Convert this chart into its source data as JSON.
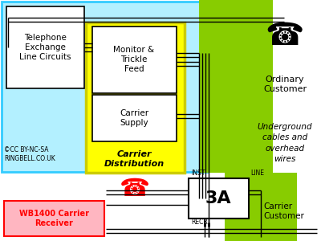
{
  "bg_color": "#ffffff",
  "light_blue_color": "#b3f0ff",
  "light_blue_edge": "#33ccff",
  "yellow_color": "#ffff00",
  "yellow_edge": "#cccc00",
  "green_color": "#88cc00",
  "pink_color": "#ffb6c1",
  "red_color": "#ff0000",
  "copyright": "©CC BY-NC-SA\nRINGBELL.CO.UK",
  "telephone_exchange_label": "Telephone\nExchange\nLine Circuits",
  "monitor_label": "Monitor &\nTrickle\nFeed",
  "carrier_supply_label": "Carrier\nSupply",
  "carrier_dist_label": "Carrier\nDistribution",
  "ordinary_customer_label": "Ordinary\nCustomer",
  "underground_label": "Underground\ncables and\noverhead\nwires",
  "wb1400_label": "WB1400 Carrier\nReceiver",
  "carrier_customer_label": "Carrier\nCustomer",
  "3a_label": "3A",
  "inst_label": "INST",
  "line_label": "LINE",
  "recr_label": "RECR"
}
